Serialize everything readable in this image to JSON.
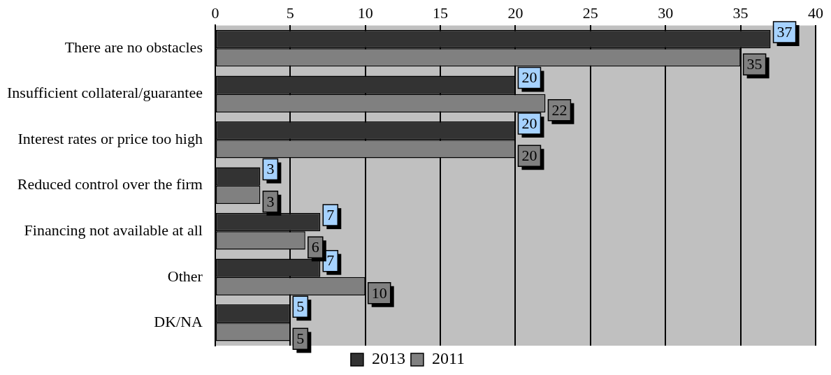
{
  "chart_data": {
    "type": "bar",
    "orientation": "horizontal",
    "categories": [
      "There are no obstacles",
      "Insufficient collateral/guarantee",
      "Interest rates or price too high",
      "Reduced control over the firm",
      "Financing not available at all",
      "Other",
      "DK/NA"
    ],
    "series": [
      {
        "name": "2013",
        "color": "#333333",
        "values": [
          37,
          20,
          20,
          3,
          7,
          7,
          5
        ]
      },
      {
        "name": "2011",
        "color": "#808080",
        "values": [
          35,
          22,
          20,
          3,
          6,
          10,
          5
        ]
      }
    ],
    "xlim": [
      0,
      40
    ],
    "xticks": [
      0,
      5,
      10,
      15,
      20,
      25,
      30,
      35,
      40
    ],
    "grid": "x",
    "legend": "bottom",
    "data_labels": true
  }
}
